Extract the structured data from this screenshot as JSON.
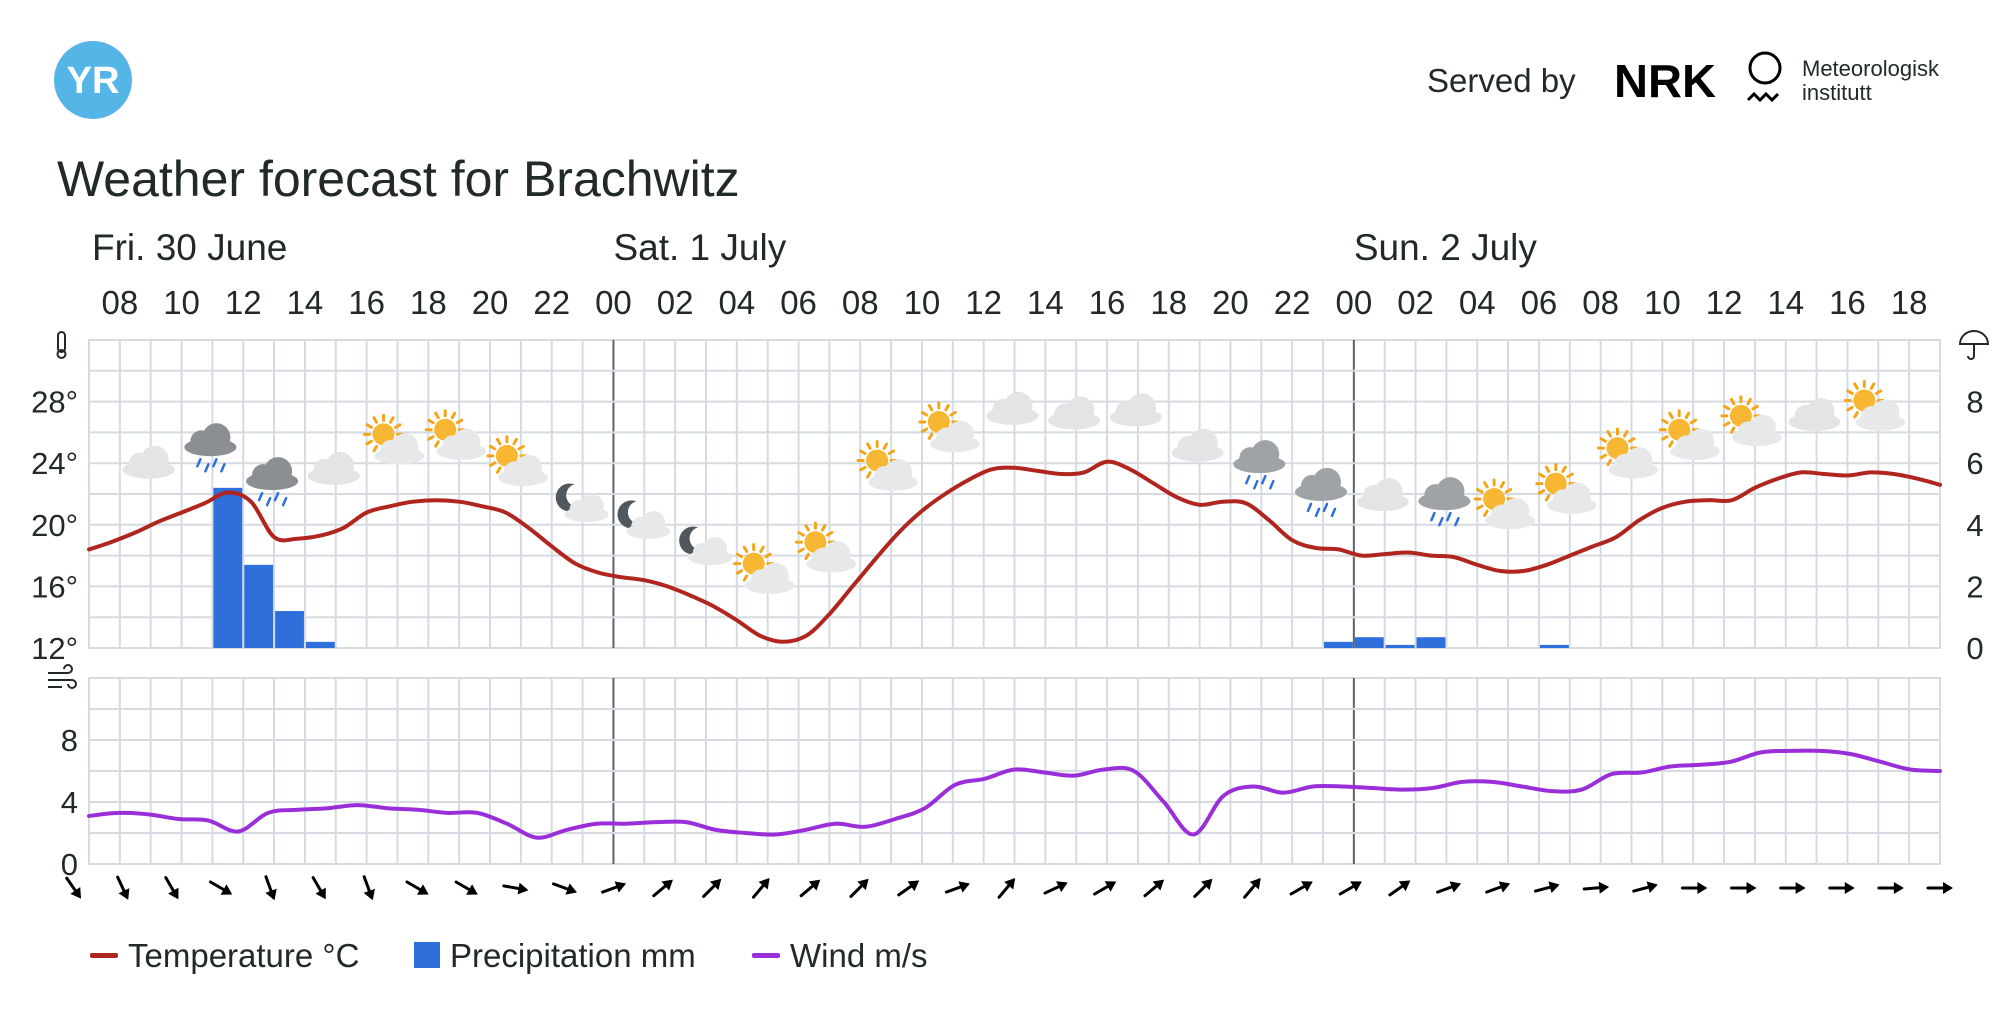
{
  "header": {
    "logo_text": "YR",
    "served_by": "Served by",
    "partner_nrk": "NRK",
    "partner_met_line1": "Meteorologisk",
    "partner_met_line2": "institutt"
  },
  "title": "Weather forecast for Brachwitz",
  "days": [
    {
      "label": "Fri. 30 June",
      "start_hour": 8
    },
    {
      "label": "Sat. 1 July",
      "start_hour": 24
    },
    {
      "label": "Sun. 2 July",
      "start_hour": 48
    }
  ],
  "hour_ticks": [
    "08",
    "10",
    "12",
    "14",
    "16",
    "18",
    "20",
    "22",
    "00",
    "02",
    "04",
    "06",
    "08",
    "10",
    "12",
    "14",
    "16",
    "18",
    "20",
    "22",
    "00",
    "02",
    "04",
    "06",
    "08",
    "10",
    "12",
    "14",
    "16",
    "18"
  ],
  "legend": [
    {
      "label": "Temperature °C",
      "color": "#b0261f"
    },
    {
      "label": "Precipitation mm",
      "color": "#2f6fdb"
    },
    {
      "label": "Wind m/s",
      "color": "#9a2fd9"
    }
  ],
  "colors": {
    "grid": "#d5dbe0",
    "axis": "#5d6469",
    "temperature": "#b0261f",
    "precipitation": "#2f6fdb",
    "wind": "#9a2fd9",
    "yr_blue": "#55b5e6"
  },
  "chart_data": {
    "type": "line",
    "x_unit": "hours from Fri. 30 June 00:00",
    "x_range": [
      7,
      67
    ],
    "temperature": {
      "ylim": [
        12,
        32
      ],
      "yticks": [
        "12°",
        "16°",
        "20°",
        "24°",
        "28°"
      ],
      "values": [
        18.4,
        18.9,
        19.5,
        20.2,
        20.8,
        21.4,
        22.1,
        21.5,
        19.2,
        19.1,
        19.3,
        19.8,
        20.8,
        21.2,
        21.5,
        21.6,
        21.5,
        21.2,
        20.8,
        19.8,
        18.6,
        17.5,
        16.9,
        16.6,
        16.4,
        16.0,
        15.4,
        14.7,
        13.8,
        12.8,
        12.4,
        12.8,
        14.2,
        16.0,
        17.8,
        19.5,
        20.9,
        22.0,
        22.9,
        23.6,
        23.7,
        23.5,
        23.3,
        23.4,
        24.1,
        23.6,
        22.7,
        21.8,
        21.3,
        21.5,
        21.4,
        20.3,
        19.0,
        18.5,
        18.4,
        18.0,
        18.1,
        18.2,
        18.0,
        17.9,
        17.4,
        17.0,
        17.0,
        17.4,
        18.0,
        18.6,
        19.2,
        20.3,
        21.1,
        21.5,
        21.6,
        21.6,
        22.4,
        23.0,
        23.4,
        23.3,
        23.2,
        23.4,
        23.3,
        23.0,
        22.6
      ]
    },
    "precipitation": {
      "ylim": [
        0,
        10
      ],
      "yticks": [
        "0",
        "2",
        "4",
        "6",
        "8"
      ],
      "values": [
        0,
        0,
        0,
        0,
        5.2,
        2.7,
        1.2,
        0.2,
        0,
        0,
        0,
        0,
        0,
        0,
        0,
        0,
        0,
        0,
        0,
        0,
        0,
        0,
        0,
        0,
        0,
        0,
        0,
        0,
        0,
        0,
        0,
        0,
        0,
        0,
        0,
        0,
        0,
        0,
        0,
        0,
        0.2,
        0.35,
        0.1,
        0.35,
        0,
        0,
        0,
        0.1,
        0,
        0,
        0,
        0,
        0,
        0,
        0,
        0,
        0,
        0,
        0,
        0
      ]
    },
    "wind": {
      "ylim": [
        0,
        12
      ],
      "yticks": [
        "0",
        "4",
        "8"
      ],
      "values": [
        3.1,
        3.3,
        3.2,
        2.9,
        2.8,
        2.1,
        3.3,
        3.5,
        3.6,
        3.8,
        3.6,
        3.5,
        3.3,
        3.3,
        2.6,
        1.7,
        2.2,
        2.6,
        2.6,
        2.7,
        2.7,
        2.2,
        2.0,
        1.9,
        2.2,
        2.6,
        2.4,
        2.9,
        3.6,
        5.1,
        5.5,
        6.1,
        5.9,
        5.7,
        6.1,
        6.0,
        4.0,
        1.9,
        4.4,
        5.0,
        4.6,
        5.0,
        5.0,
        4.9,
        4.8,
        4.9,
        5.3,
        5.3,
        5.0,
        4.7,
        4.8,
        5.8,
        5.9,
        6.3,
        6.4,
        6.6,
        7.2,
        7.3,
        7.3,
        7.1,
        6.6,
        6.1,
        6.0
      ]
    },
    "wind_direction_degrees": [
      325,
      335,
      330,
      300,
      340,
      330,
      340,
      300,
      300,
      280,
      290,
      250,
      230,
      225,
      220,
      230,
      225,
      235,
      250,
      220,
      245,
      240,
      230,
      225,
      220,
      240,
      240,
      235,
      250,
      250,
      255,
      265,
      255,
      270,
      270,
      270,
      270,
      270,
      270
    ]
  },
  "weather_symbols": [
    "cloudy",
    "rain",
    "rain",
    "cloudy",
    "partly-cloudy-day",
    "partly-cloudy-day",
    "partly-cloudy-day",
    "partly-cloudy-night",
    "partly-cloudy-night",
    "partly-cloudy-night",
    "partly-cloudy-day",
    "partly-cloudy-day",
    "partly-cloudy-day",
    "fair-day",
    "cloudy",
    "cloudy",
    "cloudy",
    "cloudy",
    "light-rain",
    "light-rain",
    "cloudy",
    "light-rain",
    "partly-cloudy-day",
    "partly-cloudy-day",
    "partly-cloudy-day",
    "partly-cloudy-day",
    "partly-cloudy-day",
    "cloudy",
    "partly-cloudy-day"
  ]
}
